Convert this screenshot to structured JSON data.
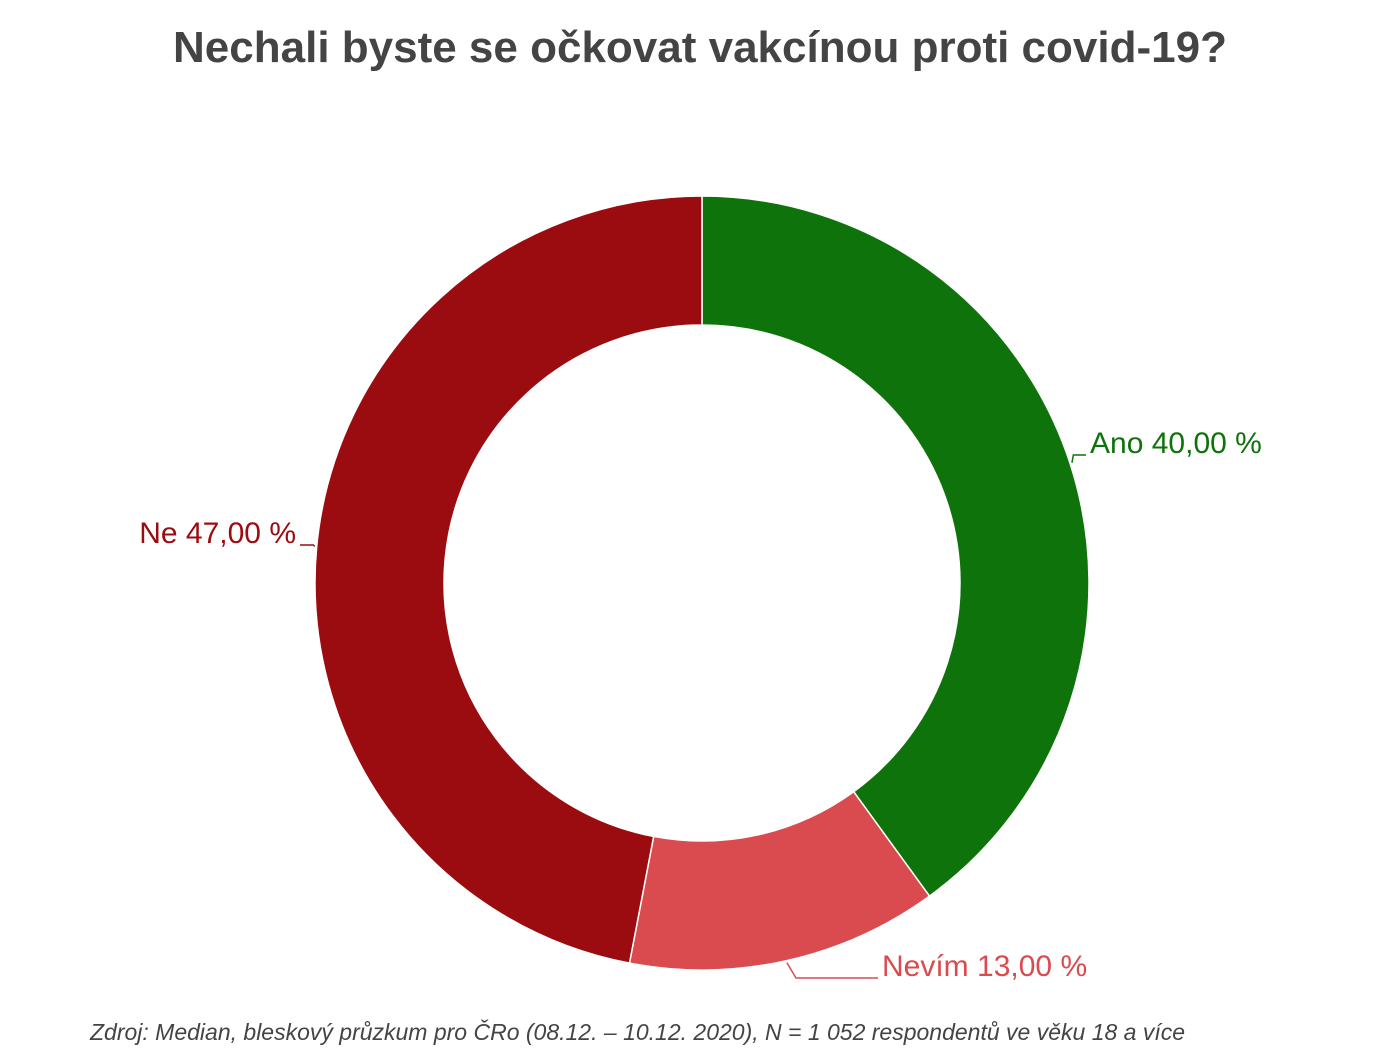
{
  "chart_data": {
    "type": "donut",
    "title": "Nechali byste se očkovat vakcínou proti covid-19?",
    "categories": [
      "Ano",
      "Nevím",
      "Ne"
    ],
    "values": [
      40,
      13,
      47
    ],
    "value_labels": [
      "40,00 %",
      "13,00 %",
      "47,00 %"
    ],
    "colors": [
      "#0e730a",
      "#d94b4e",
      "#9b0c10"
    ],
    "source": "Zdroj: Median, bleskový průzkum pro ČRo (08.12. – 10.12. 2020), N = 1 052 respondentů ve věku 18 a více"
  }
}
